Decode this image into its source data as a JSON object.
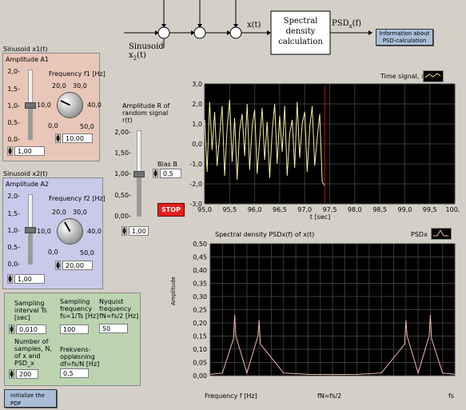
{
  "diagram": {
    "input_label": "Sinusoid",
    "input_var": "x",
    "input_sub": "2",
    "input_arg": "(t)",
    "signal_label": "x(t)",
    "block_label": "Spectral density calculation",
    "output_psd": "PSD",
    "output_sub": "x",
    "output_arg": "(f)",
    "info_button": "Information about PSD-calculation"
  },
  "sinusoid1": {
    "title": "Sinusoid x1(t)",
    "amp_label": "Amplitude A1",
    "freq_label": "Frequency f1 [Hz]",
    "amp_ticks": [
      "2,0-",
      "1,5-",
      "1,0-",
      "0,5-",
      "0,0-"
    ],
    "knob_ticks": [
      "20,0",
      "30,0",
      "10,0",
      "40,0",
      "0,0",
      "50,0"
    ],
    "amp_value": "1,00",
    "freq_value": "10,00",
    "amp_level": 1.0,
    "amp_max": 2.0
  },
  "sinusoid2": {
    "title": "Sinusoid x2(t)",
    "amp_label": "Amplitude A2",
    "freq_label": "Frequency f2 [Hz]",
    "amp_ticks": [
      "2,0-",
      "1,5-",
      "1,0-",
      "0,5-",
      "0,0-"
    ],
    "knob_ticks": [
      "20,0",
      "30,0",
      "10,0",
      "40,0",
      "0,0",
      "50,0"
    ],
    "amp_value": "1,00",
    "freq_value": "20,00",
    "amp_level": 1.0,
    "amp_max": 2.0
  },
  "random": {
    "label": "Amplitude R of random signal r(t)",
    "ticks": [
      "2,00-",
      "1,50-",
      "1,00-",
      "0,50-",
      "0,00-"
    ],
    "value": "1,00",
    "level": 1.0,
    "max": 2.0,
    "bias_label": "Bias B",
    "bias_value": "0,5"
  },
  "stop_button": "STOP",
  "sampling": {
    "interval_label": "Sampling interval Ts [sec]",
    "interval_value": "0,010",
    "freq_label": "Sampling frequency fs=1/Ts [Hz]",
    "freq_value": "100",
    "nyquist_label": "Nyquist frequency fN=fs/2 [Hz]",
    "nyquist_value": "50",
    "samples_label": "Number of samples, N, of x and PSD_x",
    "samples_value": "200",
    "resolution_label": "Frekvens-oppløsning df=fs/N [Hz]",
    "resolution_value": "0,5"
  },
  "init_button": "Initialize the PDF",
  "colors": {
    "bg": "#d4d0c8",
    "panel1": "#e9c7b8",
    "panel2": "#c9c9ea",
    "panel3": "#bcd3b0",
    "plot": "#000000",
    "time_trace": "#f4f0a0",
    "psd_trace": "#f2b6b0",
    "stop": "#e0201b",
    "button": "#a9bfd9"
  },
  "time_chart": {
    "legend": "Time signal, x",
    "xlabel": "t [sec]",
    "xticks": [
      "95,0",
      "95,5",
      "96,0",
      "96,5",
      "97,0",
      "97,5",
      "98,0",
      "98,5",
      "99,0",
      "99,5",
      "100,0"
    ],
    "yticks": [
      "3,0",
      "2,0",
      "1,0",
      "0,0",
      "-1,0",
      "-2,0",
      "-3,0"
    ]
  },
  "psd_chart": {
    "title": "Spectral density PSDx(f) of x(t)",
    "legend": "PSDx",
    "ylabel": "Amplitude",
    "yticks": [
      "0,50",
      "0,45",
      "0,40",
      "0,35",
      "0,30",
      "0,25",
      "0,20",
      "0,15",
      "0,10",
      "0,05",
      "0,00"
    ],
    "xlabel_left": "Frequency f [Hz]",
    "xlabel_mid": "fN=fs/2",
    "xlabel_right": "fs"
  },
  "chart_data": [
    {
      "type": "line",
      "legend": "Time signal, x",
      "xlabel": "t [sec]",
      "ylabel": "",
      "xlim": [
        95.0,
        100.0
      ],
      "ylim": [
        -3.0,
        3.0
      ],
      "grid": true,
      "series": [
        {
          "name": "Time signal, x",
          "x": [
            95.0,
            95.05,
            95.1,
            95.15,
            95.2,
            95.25,
            95.3,
            95.35,
            95.4,
            95.45,
            95.5,
            95.55,
            95.6,
            95.65,
            95.7,
            95.75,
            95.8,
            95.85,
            95.9,
            95.95,
            96.0,
            96.05,
            96.1,
            96.15,
            96.2,
            96.25,
            96.3,
            96.35,
            96.4,
            96.45,
            96.5,
            96.55,
            96.6,
            96.65,
            96.7,
            96.75,
            96.8,
            96.85,
            96.9,
            96.95,
            97.0,
            97.05,
            97.1,
            97.15,
            97.2,
            97.25,
            97.3,
            97.35,
            97.4
          ],
          "y": [
            1.2,
            -1.4,
            2.1,
            -0.3,
            1.6,
            -1.1,
            0.4,
            1.9,
            -1.6,
            0.8,
            2.2,
            -0.9,
            1.3,
            -1.8,
            0.7,
            1.5,
            -0.6,
            2.0,
            -1.3,
            0.9,
            1.7,
            -1.5,
            0.2,
            1.8,
            -0.8,
            1.1,
            -1.7,
            0.6,
            2.0,
            -1.0,
            1.4,
            -0.4,
            1.9,
            -1.6,
            0.5,
            1.2,
            -1.2,
            2.1,
            -0.7,
            1.0,
            1.6,
            -1.4,
            0.8,
            1.9,
            -1.1,
            0.3,
            1.5,
            -1.9,
            -2.1
          ]
        }
      ]
    },
    {
      "type": "line",
      "title": "Spectral density PSDx(f) of x(t)",
      "legend": "PSDx",
      "ylabel": "Amplitude",
      "xlabel": "Frequency f [Hz]",
      "xlim": [
        0,
        100
      ],
      "ylim": [
        0.0,
        0.5
      ],
      "grid": true,
      "series": [
        {
          "name": "PSDx",
          "x": [
            0,
            5,
            9.5,
            10,
            10.5,
            15,
            19.5,
            20,
            20.5,
            30,
            40,
            50,
            60,
            70,
            79.5,
            80,
            80.5,
            85,
            89.5,
            90,
            90.5,
            95,
            100
          ],
          "y": [
            0.005,
            0.01,
            0.14,
            0.23,
            0.15,
            0.01,
            0.15,
            0.21,
            0.12,
            0.01,
            0.005,
            0.004,
            0.005,
            0.01,
            0.12,
            0.21,
            0.15,
            0.01,
            0.15,
            0.23,
            0.14,
            0.01,
            0.005
          ]
        }
      ]
    }
  ]
}
